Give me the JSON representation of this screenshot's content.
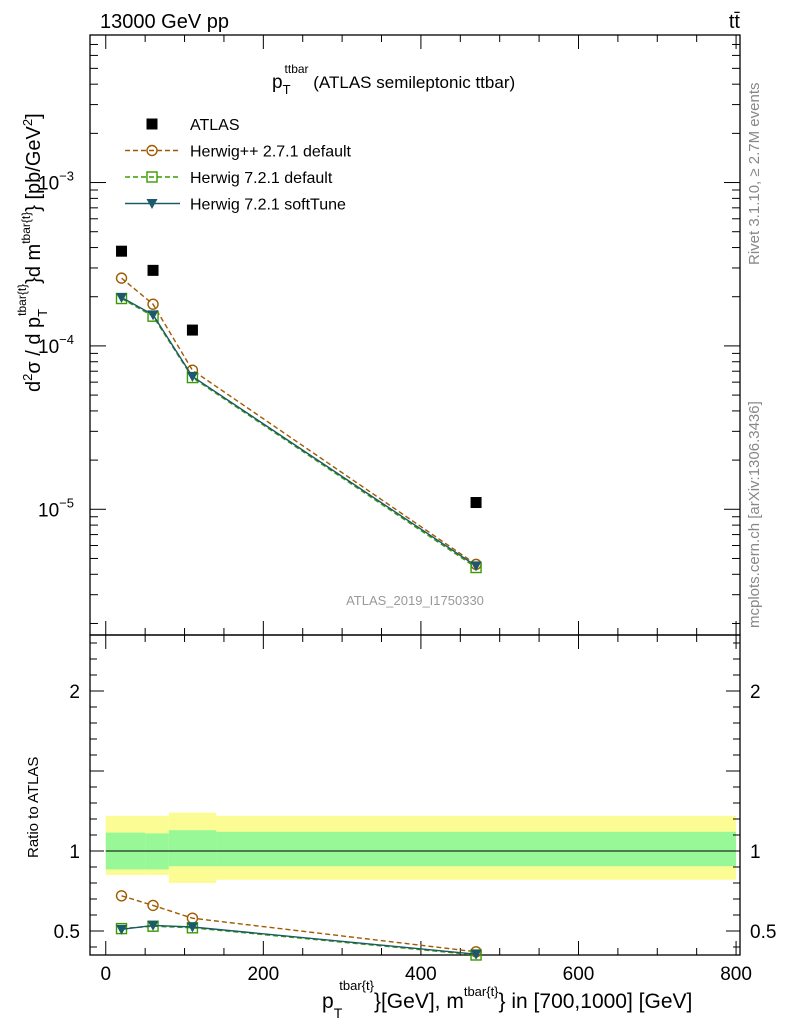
{
  "header": {
    "energy_label": "13000 GeV pp",
    "process_label": "tt̄"
  },
  "side": {
    "rivet": "Rivet 3.1.10, ≥ 2.7M events",
    "mcplots": "mcplots.cern.ch [arXiv:1306.3436]"
  },
  "watermark": "ATLAS_2019_I1750330",
  "title": {
    "main": "p",
    "sub": "T",
    "sup": "ttbar",
    "rest": " (ATLAS semileptonic ttbar)"
  },
  "y_label": {
    "pre": "d",
    "sup2": "2",
    "mid": "σ / d p",
    "sub": "T",
    "sup": "tbar{t}",
    "post1": "}d m",
    "sup3": "tbar{t}",
    "post2": "} [pb/GeV",
    "sup4": "2",
    "post3": "]"
  },
  "ratio_label": "Ratio to ATLAS",
  "x_label": {
    "main": "p",
    "sub": "T",
    "sup": "tbar{t}",
    "mid": "}[GeV], m",
    "sup2": "tbar{t}",
    "post": "} in [700,1000] [GeV]"
  },
  "chart_data": {
    "type": "scatter",
    "x_ticks": [
      0,
      200,
      400,
      600,
      800
    ],
    "x_tick_labels": [
      "0",
      "200",
      "400",
      "600",
      "800"
    ],
    "xlim": [
      -20,
      805
    ],
    "main_panel": {
      "y_scale": "log",
      "ylim": [
        1.7e-06,
        0.008
      ],
      "y_major_ticks": [
        1e-05,
        0.0001,
        0.001
      ],
      "y_tick_labels": [
        {
          "base": "10",
          "exp": "−5"
        },
        {
          "base": "10",
          "exp": "−4"
        },
        {
          "base": "10",
          "exp": "−3"
        }
      ]
    },
    "ratio_panel": {
      "y_scale": "linear",
      "ylim": [
        0.35,
        2.35
      ],
      "y_major_ticks": [
        0.5,
        1,
        2
      ],
      "y_tick_labels": [
        "0.5",
        "1",
        "2"
      ],
      "bands": [
        {
          "x": [
            0,
            50
          ],
          "inner": [
            0.885,
            1.115
          ],
          "outer": [
            0.85,
            1.22
          ]
        },
        {
          "x": [
            50,
            80
          ],
          "inner": [
            0.885,
            1.11
          ],
          "outer": [
            0.85,
            1.22
          ]
        },
        {
          "x": [
            80,
            140
          ],
          "inner": [
            0.905,
            1.13
          ],
          "outer": [
            0.8,
            1.24
          ]
        },
        {
          "x": [
            140,
            800
          ],
          "inner": [
            0.905,
            1.12
          ],
          "outer": [
            0.82,
            1.22
          ]
        }
      ],
      "band_colors": {
        "inner": "#98f898",
        "outer": "#fcfc94"
      }
    },
    "series": [
      {
        "name": "ATLAS",
        "marker": "square-filled",
        "color": "#000000",
        "x": [
          20,
          60,
          110,
          470
        ],
        "y": [
          0.00038,
          0.00029,
          0.000125,
          1.1e-05
        ],
        "ratio": [
          1,
          1,
          1,
          1
        ]
      },
      {
        "name": "Herwig++ 2.7.1 default",
        "marker": "circle-open",
        "line": "dashed",
        "color": "#a05a00",
        "x": [
          20,
          60,
          110,
          470
        ],
        "y": [
          0.00026,
          0.00018,
          7.1e-05,
          4.6e-06
        ],
        "ratio": [
          0.72,
          0.66,
          0.58,
          0.37
        ]
      },
      {
        "name": "Herwig 7.2.1 default",
        "marker": "square-open",
        "line": "dashed",
        "color": "#3a9a00",
        "x": [
          20,
          60,
          110,
          470
        ],
        "y": [
          0.000195,
          0.000152,
          6.4e-05,
          4.4e-06
        ],
        "ratio": [
          0.515,
          0.53,
          0.52,
          0.35
        ]
      },
      {
        "name": "Herwig 7.2.1 softTune",
        "marker": "triangle-down-filled",
        "line": "solid",
        "color": "#1a5a6a",
        "x": [
          20,
          60,
          110,
          470
        ],
        "y": [
          0.000198,
          0.000155,
          6.5e-05,
          4.5e-06
        ],
        "ratio": [
          0.51,
          0.535,
          0.525,
          0.355
        ]
      }
    ]
  }
}
